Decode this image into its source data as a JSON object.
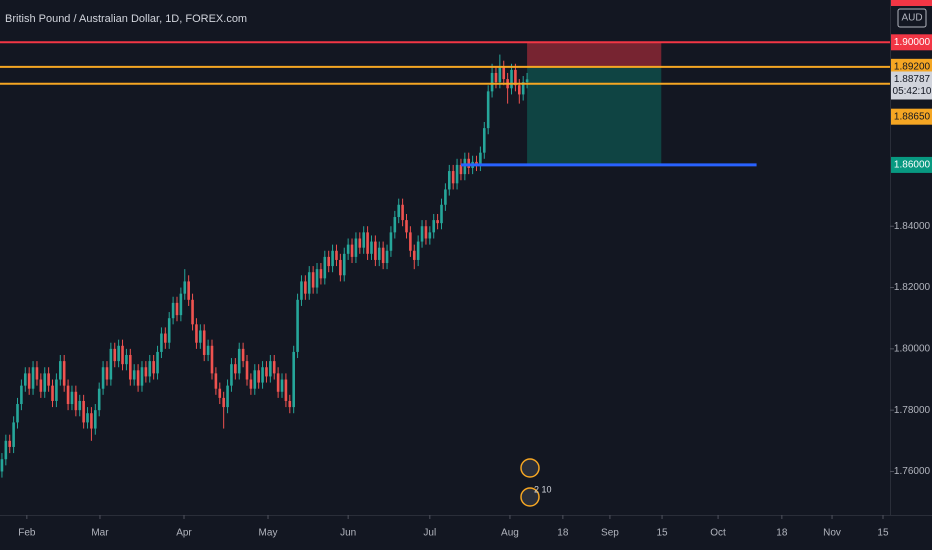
{
  "chart_data": {
    "type": "candlestick",
    "title": "British Pound / Australian Dollar, 1D, FOREX.com",
    "currency": "AUD",
    "colors": {
      "up": "#26a69a",
      "down": "#ef5350"
    },
    "grid": false,
    "ylim": [
      1.7458,
      1.9138
    ],
    "yticks": [
      {
        "value": 1.76,
        "label": "1.76000"
      },
      {
        "value": 1.78,
        "label": "1.78000"
      },
      {
        "value": 1.8,
        "label": "1.80000"
      },
      {
        "value": 1.82,
        "label": "1.82000"
      },
      {
        "value": 1.84,
        "label": "1.84000"
      }
    ],
    "xlim": [
      -0.5,
      228.3
    ],
    "xticks": [
      {
        "value": 6.4,
        "label": "Feb"
      },
      {
        "value": 25.2,
        "label": "Mar"
      },
      {
        "value": 46.8,
        "label": "Apr"
      },
      {
        "value": 68.4,
        "label": "May"
      },
      {
        "value": 89,
        "label": "Jun"
      },
      {
        "value": 110,
        "label": "Jul"
      },
      {
        "value": 130.6,
        "label": "Aug"
      },
      {
        "value": 144.2,
        "label": "18"
      },
      {
        "value": 156.3,
        "label": "Sep"
      },
      {
        "value": 169.7,
        "label": "15"
      },
      {
        "value": 184.1,
        "label": "Oct"
      },
      {
        "value": 200.5,
        "label": "18"
      },
      {
        "value": 213.4,
        "label": "Nov"
      },
      {
        "value": 226.5,
        "label": "15"
      }
    ],
    "open": [
      1.76,
      1.764,
      1.77,
      1.768,
      1.776,
      1.782,
      1.788,
      1.792,
      1.787,
      1.794,
      1.79,
      1.786,
      1.792,
      1.788,
      1.783,
      1.79,
      1.796,
      1.788,
      1.782,
      1.786,
      1.78,
      1.783,
      1.776,
      1.779,
      1.774,
      1.78,
      1.787,
      1.794,
      1.79,
      1.8,
      1.796,
      1.801,
      1.795,
      1.798,
      1.79,
      1.793,
      1.788,
      1.794,
      1.791,
      1.796,
      1.792,
      1.799,
      1.805,
      1.802,
      1.81,
      1.815,
      1.811,
      1.818,
      1.822,
      1.816,
      1.808,
      1.802,
      1.806,
      1.798,
      1.801,
      1.792,
      1.787,
      1.784,
      1.781,
      1.788,
      1.795,
      1.792,
      1.8,
      1.796,
      1.79,
      1.787,
      1.793,
      1.789,
      1.794,
      1.791,
      1.796,
      1.792,
      1.786,
      1.79,
      1.783,
      1.781,
      1.799,
      1.816,
      1.822,
      1.818,
      1.825,
      1.82,
      1.826,
      1.823,
      1.83,
      1.827,
      1.832,
      1.829,
      1.824,
      1.831,
      1.834,
      1.83,
      1.836,
      1.833,
      1.838,
      1.831,
      1.835,
      1.829,
      1.833,
      1.828,
      1.832,
      1.838,
      1.843,
      1.847,
      1.842,
      1.838,
      1.832,
      1.829,
      1.835,
      1.84,
      1.836,
      1.838,
      1.842,
      1.841,
      1.847,
      1.852,
      1.858,
      1.854,
      1.86,
      1.857,
      1.862,
      1.859,
      1.861,
      1.86,
      1.864,
      1.872,
      1.884,
      1.89,
      1.887,
      1.892,
      1.888,
      1.885,
      1.891,
      1.886,
      1.883,
      1.887
    ],
    "high": [
      1.766,
      1.772,
      1.772,
      1.778,
      1.784,
      1.79,
      1.794,
      1.794,
      1.796,
      1.796,
      1.792,
      1.794,
      1.794,
      1.79,
      1.792,
      1.798,
      1.798,
      1.79,
      1.788,
      1.788,
      1.785,
      1.785,
      1.781,
      1.781,
      1.782,
      1.789,
      1.796,
      1.796,
      1.802,
      1.802,
      1.803,
      1.803,
      1.8,
      1.8,
      1.795,
      1.795,
      1.796,
      1.796,
      1.798,
      1.798,
      1.801,
      1.807,
      1.807,
      1.812,
      1.817,
      1.817,
      1.82,
      1.826,
      1.824,
      1.818,
      1.81,
      1.808,
      1.808,
      1.803,
      1.803,
      1.794,
      1.789,
      1.786,
      1.79,
      1.797,
      1.797,
      1.802,
      1.802,
      1.798,
      1.792,
      1.795,
      1.795,
      1.796,
      1.796,
      1.798,
      1.798,
      1.794,
      1.792,
      1.792,
      1.785,
      1.801,
      1.818,
      1.824,
      1.824,
      1.827,
      1.827,
      1.828,
      1.828,
      1.832,
      1.832,
      1.834,
      1.834,
      1.831,
      1.833,
      1.836,
      1.836,
      1.838,
      1.838,
      1.84,
      1.84,
      1.837,
      1.837,
      1.835,
      1.835,
      1.834,
      1.84,
      1.845,
      1.849,
      1.849,
      1.844,
      1.84,
      1.834,
      1.837,
      1.842,
      1.842,
      1.84,
      1.844,
      1.844,
      1.849,
      1.854,
      1.86,
      1.86,
      1.862,
      1.862,
      1.864,
      1.864,
      1.863,
      1.863,
      1.866,
      1.874,
      1.886,
      1.893,
      1.892,
      1.896,
      1.894,
      1.89,
      1.893,
      1.893,
      1.888,
      1.889,
      1.89
    ],
    "low": [
      1.758,
      1.762,
      1.766,
      1.766,
      1.774,
      1.78,
      1.786,
      1.785,
      1.785,
      1.788,
      1.784,
      1.784,
      1.786,
      1.781,
      1.781,
      1.788,
      1.786,
      1.78,
      1.78,
      1.778,
      1.778,
      1.774,
      1.774,
      1.77,
      1.772,
      1.778,
      1.785,
      1.788,
      1.788,
      1.794,
      1.794,
      1.793,
      1.793,
      1.788,
      1.788,
      1.786,
      1.786,
      1.789,
      1.789,
      1.79,
      1.79,
      1.797,
      1.8,
      1.8,
      1.808,
      1.809,
      1.809,
      1.816,
      1.814,
      1.806,
      1.8,
      1.8,
      1.796,
      1.796,
      1.79,
      1.785,
      1.782,
      1.774,
      1.779,
      1.786,
      1.79,
      1.79,
      1.794,
      1.788,
      1.785,
      1.785,
      1.787,
      1.787,
      1.789,
      1.789,
      1.79,
      1.784,
      1.784,
      1.781,
      1.779,
      1.779,
      1.797,
      1.814,
      1.816,
      1.816,
      1.818,
      1.818,
      1.821,
      1.821,
      1.825,
      1.825,
      1.827,
      1.822,
      1.822,
      1.829,
      1.828,
      1.828,
      1.831,
      1.831,
      1.829,
      1.829,
      1.827,
      1.827,
      1.826,
      1.826,
      1.83,
      1.836,
      1.841,
      1.84,
      1.836,
      1.83,
      1.826,
      1.827,
      1.833,
      1.834,
      1.834,
      1.836,
      1.839,
      1.839,
      1.845,
      1.85,
      1.852,
      1.852,
      1.855,
      1.855,
      1.857,
      1.857,
      1.858,
      1.858,
      1.862,
      1.87,
      1.882,
      1.885,
      1.885,
      1.886,
      1.88,
      1.883,
      1.884,
      1.88,
      1.881,
      1.885
    ],
    "close": [
      1.764,
      1.77,
      1.768,
      1.776,
      1.782,
      1.788,
      1.792,
      1.787,
      1.794,
      1.79,
      1.786,
      1.792,
      1.788,
      1.783,
      1.79,
      1.796,
      1.788,
      1.782,
      1.786,
      1.78,
      1.783,
      1.776,
      1.779,
      1.774,
      1.78,
      1.787,
      1.794,
      1.79,
      1.8,
      1.796,
      1.801,
      1.795,
      1.798,
      1.79,
      1.793,
      1.788,
      1.794,
      1.791,
      1.796,
      1.792,
      1.799,
      1.805,
      1.802,
      1.81,
      1.815,
      1.811,
      1.818,
      1.822,
      1.816,
      1.808,
      1.802,
      1.806,
      1.798,
      1.801,
      1.792,
      1.787,
      1.784,
      1.781,
      1.788,
      1.795,
      1.792,
      1.8,
      1.796,
      1.79,
      1.787,
      1.793,
      1.789,
      1.794,
      1.791,
      1.796,
      1.792,
      1.786,
      1.79,
      1.783,
      1.781,
      1.799,
      1.816,
      1.822,
      1.818,
      1.825,
      1.82,
      1.826,
      1.823,
      1.83,
      1.827,
      1.832,
      1.829,
      1.824,
      1.831,
      1.834,
      1.83,
      1.836,
      1.833,
      1.838,
      1.831,
      1.835,
      1.829,
      1.833,
      1.828,
      1.832,
      1.838,
      1.843,
      1.847,
      1.842,
      1.838,
      1.832,
      1.829,
      1.835,
      1.84,
      1.836,
      1.838,
      1.842,
      1.841,
      1.847,
      1.852,
      1.858,
      1.854,
      1.86,
      1.857,
      1.862,
      1.859,
      1.861,
      1.86,
      1.864,
      1.872,
      1.884,
      1.89,
      1.887,
      1.892,
      1.888,
      1.885,
      1.891,
      1.886,
      1.883,
      1.887,
      1.8879
    ],
    "levels": [
      {
        "value": 1.9,
        "label": "1.90000",
        "color": "#f23645"
      },
      {
        "value": 1.892,
        "label": "1.89200",
        "color": "#f5a623"
      },
      {
        "value": 1.8865,
        "label": "1.88650",
        "color": "#f5a623"
      }
    ],
    "target_line": {
      "value": 1.86,
      "label": "1.86000",
      "start": 118,
      "end": 194,
      "color": "#2962ff"
    },
    "position": {
      "start": 135,
      "end": 169.5,
      "stop": 1.9,
      "entry": 1.892,
      "target": 1.86
    },
    "last_price": {
      "value": 1.88787,
      "label": "1.88787",
      "countdown": "05:42:10"
    },
    "events_label": "2 10"
  }
}
